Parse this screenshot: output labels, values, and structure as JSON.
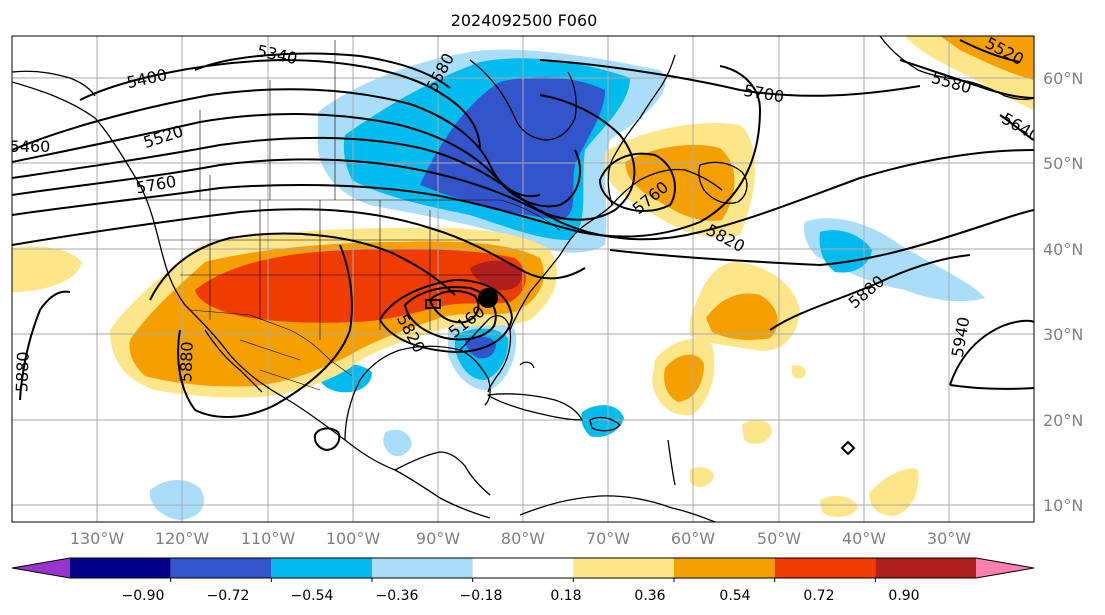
{
  "title": "2024092500 F060",
  "latitude_labels": [
    "60°N",
    "50°N",
    "40°N",
    "30°N",
    "20°N",
    "10°N"
  ],
  "longitude_labels": [
    "130°W",
    "120°W",
    "110°W",
    "100°W",
    "90°W",
    "80°W",
    "70°W",
    "60°W",
    "50°W",
    "40°W",
    "30°W"
  ],
  "contour_labels": [
    "5340",
    "5400",
    "5460",
    "5520",
    "5580",
    "5700",
    "5580",
    "5520",
    "5640",
    "5760",
    "5820",
    "5880",
    "5880",
    "5880",
    "5880",
    "5940",
    "5820",
    "5760",
    "5160",
    "5580"
  ],
  "colorbar": {
    "tick_labels": [
      "−0.90",
      "−0.72",
      "−0.54",
      "−0.36",
      "−0.18",
      "0.18",
      "0.36",
      "0.54",
      "0.72",
      "0.90"
    ],
    "colors": [
      "#9933cc",
      "#000088",
      "#3355cc",
      "#00bbee",
      "#aaddf8",
      "#ffffff",
      "#fde68a",
      "#f5a000",
      "#f03c00",
      "#b01e1e",
      "#ff80b0"
    ]
  },
  "storm_marker": "black-dot",
  "colors": {
    "grid": "#aaaaaa",
    "contour": "#000000",
    "coast": "#000000"
  }
}
